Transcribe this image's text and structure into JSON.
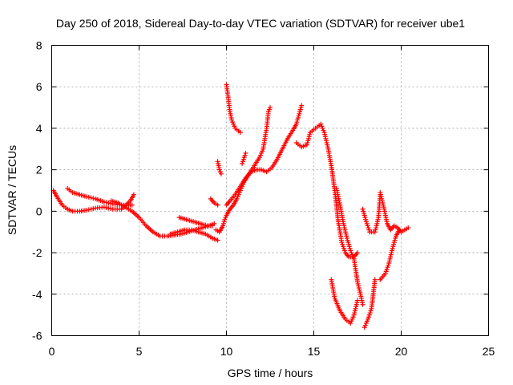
{
  "chart_data": {
    "type": "scatter",
    "title": "Day 250 of 2018, Sidereal Day-to-day VTEC variation (SDTVAR) for receiver ube1",
    "xlabel": "GPS time / hours",
    "ylabel": "SDTVAR / TECUs",
    "xlim": [
      0,
      25
    ],
    "ylim": [
      -6,
      8
    ],
    "xticks": [
      "0",
      "5",
      "10",
      "15",
      "20",
      "25"
    ],
    "yticks": [
      "-6",
      "-4",
      "-2",
      "0",
      "2",
      "4",
      "6",
      "8"
    ],
    "grid": true,
    "marker": "+",
    "color": "#ff0000",
    "series": [
      {
        "points": [
          [
            0.1,
            1.0
          ],
          [
            0.3,
            0.7
          ],
          [
            0.6,
            0.3
          ],
          [
            0.9,
            0.1
          ],
          [
            1.2,
            0.0
          ],
          [
            1.6,
            0.0
          ],
          [
            2.0,
            0.05
          ],
          [
            2.5,
            0.15
          ],
          [
            3.0,
            0.2
          ],
          [
            3.5,
            0.1
          ],
          [
            4.0,
            0.1
          ],
          [
            4.5,
            0.5
          ],
          [
            4.7,
            0.8
          ]
        ]
      },
      {
        "points": [
          [
            0.9,
            1.1
          ],
          [
            1.2,
            0.9
          ],
          [
            1.6,
            0.8
          ],
          [
            2.0,
            0.7
          ],
          [
            2.5,
            0.6
          ],
          [
            3.0,
            0.45
          ],
          [
            3.5,
            0.35
          ],
          [
            4.0,
            0.3
          ],
          [
            4.4,
            0.3
          ],
          [
            4.6,
            0.3
          ]
        ]
      },
      {
        "points": [
          [
            3.4,
            0.5
          ],
          [
            3.8,
            0.4
          ],
          [
            4.2,
            0.2
          ],
          [
            4.6,
            0.0
          ],
          [
            5.0,
            -0.3
          ],
          [
            5.4,
            -0.7
          ],
          [
            5.8,
            -1.0
          ],
          [
            6.2,
            -1.2
          ],
          [
            6.6,
            -1.2
          ],
          [
            7.0,
            -1.15
          ],
          [
            7.4,
            -1.1
          ],
          [
            7.8,
            -1.0
          ],
          [
            8.2,
            -0.9
          ],
          [
            8.6,
            -0.8
          ],
          [
            9.0,
            -0.7
          ],
          [
            9.3,
            -0.6
          ]
        ]
      },
      {
        "points": [
          [
            6.8,
            -1.1
          ],
          [
            7.2,
            -1.0
          ],
          [
            7.6,
            -0.9
          ],
          [
            8.0,
            -0.9
          ],
          [
            8.4,
            -1.0
          ],
          [
            8.8,
            -1.1
          ],
          [
            9.2,
            -1.3
          ],
          [
            9.5,
            -1.4
          ]
        ]
      },
      {
        "points": [
          [
            7.3,
            -0.3
          ],
          [
            7.7,
            -0.4
          ],
          [
            8.1,
            -0.5
          ],
          [
            8.5,
            -0.6
          ],
          [
            8.9,
            -0.7
          ],
          [
            9.2,
            -0.7
          ]
        ]
      },
      {
        "points": [
          [
            9.4,
            -0.9
          ],
          [
            9.6,
            -1.0
          ],
          [
            9.8,
            -0.7
          ],
          [
            9.9,
            -0.4
          ],
          [
            10.0,
            -0.2
          ],
          [
            10.2,
            0.1
          ],
          [
            10.4,
            0.3
          ],
          [
            10.6,
            0.6
          ],
          [
            10.8,
            1.0
          ],
          [
            11.0,
            1.4
          ],
          [
            11.3,
            1.8
          ],
          [
            11.6,
            2.2
          ],
          [
            11.9,
            2.6
          ],
          [
            12.1,
            3.0
          ],
          [
            12.3,
            4.0
          ],
          [
            12.4,
            4.8
          ],
          [
            12.5,
            5.0
          ]
        ]
      },
      {
        "points": [
          [
            10.0,
            0.3
          ],
          [
            10.2,
            0.5
          ],
          [
            10.5,
            0.8
          ],
          [
            10.8,
            1.2
          ],
          [
            11.1,
            1.6
          ],
          [
            11.4,
            1.9
          ],
          [
            11.7,
            2.0
          ],
          [
            12.0,
            2.0
          ],
          [
            12.3,
            1.9
          ],
          [
            12.6,
            2.1
          ],
          [
            12.9,
            2.5
          ],
          [
            13.2,
            3.0
          ],
          [
            13.5,
            3.5
          ],
          [
            13.8,
            3.9
          ],
          [
            14.0,
            4.2
          ],
          [
            14.2,
            4.8
          ],
          [
            14.3,
            5.1
          ]
        ]
      },
      {
        "points": [
          [
            9.1,
            0.6
          ],
          [
            9.3,
            0.4
          ],
          [
            9.5,
            0.3
          ]
        ]
      },
      {
        "points": [
          [
            9.5,
            2.4
          ],
          [
            9.6,
            2.0
          ],
          [
            9.7,
            1.8
          ]
        ]
      },
      {
        "points": [
          [
            10.9,
            2.3
          ],
          [
            11.1,
            2.8
          ]
        ]
      },
      {
        "points": [
          [
            10.0,
            6.1
          ],
          [
            10.1,
            5.5
          ],
          [
            10.2,
            4.8
          ],
          [
            10.3,
            4.4
          ],
          [
            10.5,
            4.0
          ],
          [
            10.8,
            3.8
          ]
        ]
      },
      {
        "points": [
          [
            14.0,
            3.3
          ],
          [
            14.3,
            3.1
          ],
          [
            14.6,
            3.2
          ],
          [
            14.8,
            3.8
          ],
          [
            15.1,
            4.0
          ],
          [
            15.4,
            4.2
          ],
          [
            15.6,
            3.8
          ],
          [
            15.8,
            3.1
          ],
          [
            16.0,
            2.2
          ],
          [
            16.2,
            1.0
          ],
          [
            16.4,
            -0.5
          ],
          [
            16.6,
            -1.5
          ],
          [
            16.8,
            -2.0
          ],
          [
            17.0,
            -2.2
          ],
          [
            17.3,
            -2.2
          ],
          [
            17.5,
            -2.0
          ]
        ]
      },
      {
        "points": [
          [
            16.3,
            1.1
          ],
          [
            16.5,
            0.3
          ],
          [
            16.7,
            -0.6
          ],
          [
            16.9,
            -1.3
          ],
          [
            17.1,
            -1.9
          ],
          [
            17.3,
            -2.3
          ],
          [
            17.5,
            -3.4
          ],
          [
            17.7,
            -4.1
          ],
          [
            17.8,
            -4.5
          ]
        ]
      },
      {
        "points": [
          [
            16.0,
            -3.3
          ],
          [
            16.2,
            -4.2
          ],
          [
            16.5,
            -4.8
          ],
          [
            16.8,
            -5.2
          ],
          [
            17.1,
            -5.4
          ],
          [
            17.3,
            -5.0
          ],
          [
            17.5,
            -4.3
          ]
        ]
      },
      {
        "points": [
          [
            17.8,
            0.1
          ],
          [
            18.0,
            -0.5
          ],
          [
            18.2,
            -1.0
          ],
          [
            18.5,
            -1.0
          ],
          [
            18.7,
            -0.3
          ],
          [
            18.8,
            0.8
          ]
        ]
      },
      {
        "points": [
          [
            18.8,
            0.9
          ],
          [
            19.0,
            0.2
          ],
          [
            19.2,
            -0.6
          ],
          [
            19.4,
            -0.9
          ],
          [
            19.6,
            -0.7
          ],
          [
            19.8,
            -0.8
          ],
          [
            20.0,
            -1.0
          ],
          [
            20.2,
            -0.9
          ],
          [
            20.4,
            -0.8
          ]
        ]
      },
      {
        "points": [
          [
            18.8,
            -3.3
          ],
          [
            19.1,
            -3.0
          ],
          [
            19.3,
            -2.5
          ],
          [
            19.5,
            -1.8
          ],
          [
            19.7,
            -1.2
          ],
          [
            19.9,
            -0.9
          ]
        ]
      },
      {
        "points": [
          [
            17.9,
            -5.6
          ],
          [
            18.1,
            -5.2
          ],
          [
            18.3,
            -4.7
          ],
          [
            18.5,
            -3.3
          ]
        ]
      }
    ]
  }
}
